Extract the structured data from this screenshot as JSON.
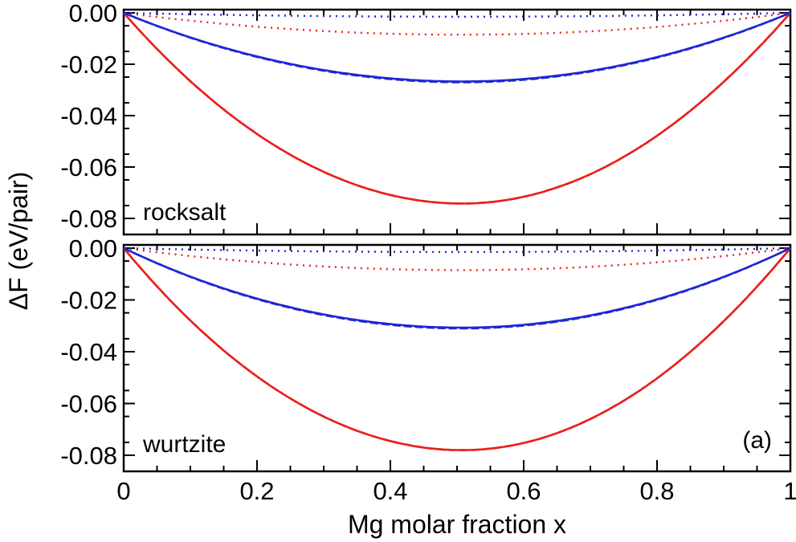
{
  "chart_data": {
    "type": "line",
    "ylabel": "ΔF (eV/pair)",
    "xlabel": "Mg molar fraction x",
    "xlim": [
      0,
      1
    ],
    "x_ticks": [
      0,
      0.2,
      0.4,
      0.6,
      0.8,
      1
    ],
    "x_tick_labels": [
      "0",
      "0.2",
      "0.4",
      "0.6",
      "0.8",
      "1"
    ],
    "ylim": [
      -0.085,
      0.0
    ],
    "y_ticks": [
      0.0,
      -0.02,
      -0.04,
      -0.06,
      -0.08
    ],
    "y_tick_labels": [
      "0.00",
      "-0.02",
      "-0.04",
      "-0.06",
      "-0.08"
    ],
    "figure_label": "(a)",
    "panels": [
      {
        "label": "rocksalt",
        "series": [
          {
            "name": "red solid",
            "color": "#e8211d",
            "style": "solid",
            "min_value": -0.0742,
            "min_at_x": 0.5
          },
          {
            "name": "red dashed",
            "color": "#e8211d",
            "style": "dashed",
            "min_value": -0.0742,
            "min_at_x": 0.5
          },
          {
            "name": "red dotted",
            "color": "#e8211d",
            "style": "dotted",
            "min_value": -0.0085,
            "min_at_x": 0.5
          },
          {
            "name": "blue solid",
            "color": "#1d27d6",
            "style": "solid",
            "min_value": -0.0267,
            "min_at_x": 0.5
          },
          {
            "name": "blue dashed",
            "color": "#1d27d6",
            "style": "dashed",
            "min_value": -0.027,
            "min_at_x": 0.5
          },
          {
            "name": "blue dotted",
            "color": "#1d27d6",
            "style": "dotted",
            "min_value": -0.0015,
            "min_at_x": 0.5
          }
        ]
      },
      {
        "label": "wurtzite",
        "series": [
          {
            "name": "red solid",
            "color": "#e8211d",
            "style": "solid",
            "min_value": -0.078,
            "min_at_x": 0.5
          },
          {
            "name": "red dashed",
            "color": "#e8211d",
            "style": "dashed",
            "min_value": -0.078,
            "min_at_x": 0.5
          },
          {
            "name": "red dotted",
            "color": "#e8211d",
            "style": "dotted",
            "min_value": -0.0085,
            "min_at_x": 0.5
          },
          {
            "name": "blue solid",
            "color": "#1d27d6",
            "style": "solid",
            "min_value": -0.0307,
            "min_at_x": 0.5
          },
          {
            "name": "blue dashed",
            "color": "#1d27d6",
            "style": "dashed",
            "min_value": -0.031,
            "min_at_x": 0.5
          },
          {
            "name": "blue dotted",
            "color": "#1d27d6",
            "style": "dotted",
            "min_value": -0.0015,
            "min_at_x": 0.5
          }
        ]
      }
    ]
  }
}
